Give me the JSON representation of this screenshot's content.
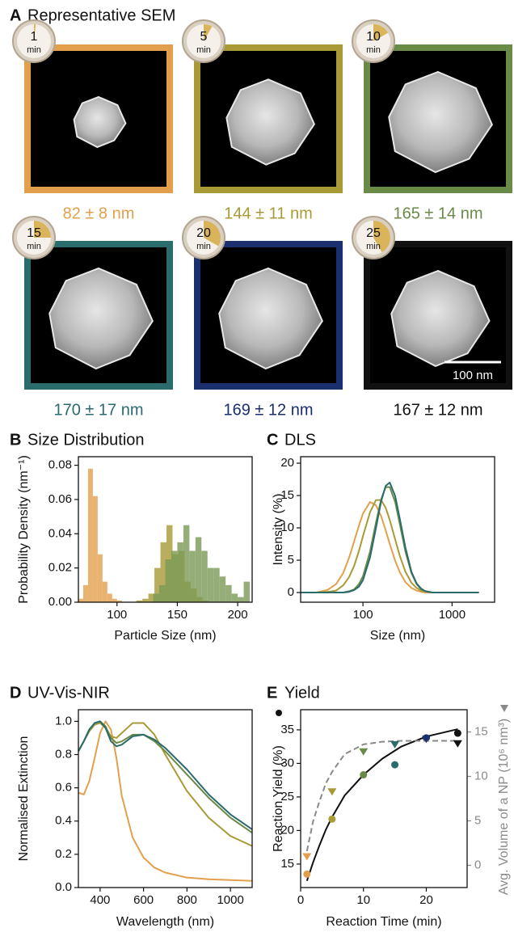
{
  "panel_a": {
    "label": "A",
    "title": "Representative SEM",
    "unit": "min",
    "scale_bar": "100 nm",
    "images": [
      {
        "time": 1,
        "size": "82 ± 8 nm",
        "color": "#e2a04c"
      },
      {
        "time": 5,
        "size": "144 ± 11 nm",
        "color": "#a89a36"
      },
      {
        "time": 10,
        "size": "165 ± 14 nm",
        "color": "#6a8a48"
      },
      {
        "time": 15,
        "size": "170 ± 17 nm",
        "color": "#2a6b6c"
      },
      {
        "time": 20,
        "size": "169 ± 12 nm",
        "color": "#1b2e6e"
      },
      {
        "time": 25,
        "size": "167 ± 12 nm",
        "color": "#111111"
      }
    ]
  },
  "chart_data": [
    {
      "type": "histogram",
      "label": "B",
      "title": "Size Distribution",
      "xlabel": "Particle Size (nm)",
      "ylabel": "Probability Density (nm⁻¹)",
      "xlim": [
        68,
        212
      ],
      "ylim": [
        0,
        0.085
      ],
      "xticks": [
        100,
        150,
        200
      ],
      "yticks": [
        {
          "value": 0,
          "label": "0.00"
        },
        0.02,
        0.04,
        0.06,
        0.08
      ],
      "series": [
        {
          "color": "#e2a04c",
          "bins": [
            68,
            72,
            76,
            80,
            84,
            88,
            92,
            96,
            100,
            104
          ],
          "values": [
            0.002,
            0.01,
            0.078,
            0.062,
            0.028,
            0.012,
            0.005,
            0.002,
            0.001
          ]
        },
        {
          "color": "#a89a36",
          "bins": [
            116,
            121,
            126,
            131,
            136,
            141,
            146,
            151,
            156,
            161,
            166,
            171,
            176
          ],
          "values": [
            0.001,
            0.002,
            0.005,
            0.02,
            0.035,
            0.045,
            0.028,
            0.03,
            0.012,
            0.008,
            0.003,
            0.001
          ]
        },
        {
          "color": "#7a9a55",
          "bins": [
            130,
            135,
            140,
            145,
            150,
            155,
            160,
            165,
            170,
            175,
            180,
            185,
            190,
            195,
            200,
            205,
            210
          ],
          "values": [
            0.005,
            0.01,
            0.025,
            0.03,
            0.035,
            0.045,
            0.03,
            0.038,
            0.03,
            0.02,
            0.02,
            0.015,
            0.01,
            0.005,
            0.003,
            0.012
          ]
        }
      ]
    },
    {
      "type": "line",
      "label": "C",
      "title": "DLS",
      "xlabel": "Size (nm)",
      "ylabel": "Intensity (%)",
      "xscale": "log",
      "xlim": [
        20,
        3000
      ],
      "ylim": [
        -1.5,
        21
      ],
      "xticks": [
        100,
        1000
      ],
      "yticks": [
        0,
        5,
        10,
        15,
        20
      ],
      "x": [
        20,
        30,
        40,
        50,
        60,
        70,
        80,
        90,
        100,
        120,
        140,
        160,
        180,
        200,
        230,
        260,
        300,
        350,
        400,
        450,
        500,
        600,
        2000
      ],
      "series": [
        {
          "color": "#e2a04c",
          "values": [
            0,
            0,
            0.4,
            1.3,
            3.0,
            5.4,
            8.0,
            10.3,
            12.2,
            14.0,
            13.5,
            11.8,
            9.6,
            7.5,
            4.9,
            3.1,
            1.6,
            0.7,
            0.3,
            0.1,
            0,
            0,
            0
          ]
        },
        {
          "color": "#a89a36",
          "values": [
            0,
            0,
            0.1,
            0.3,
            1.1,
            2.4,
            4.2,
            6.4,
            8.7,
            12.4,
            14.3,
            14.3,
            13.1,
            11.2,
            8.2,
            5.6,
            3.2,
            1.5,
            0.7,
            0.3,
            0.2,
            0,
            0
          ]
        },
        {
          "color": "#6a8a48",
          "values": [
            0,
            0,
            0,
            0,
            0,
            0.2,
            0.5,
            1.3,
            2.5,
            6.3,
            10.8,
            14.4,
            16.3,
            16.3,
            14.0,
            10.5,
            6.3,
            3.0,
            1.3,
            0.5,
            0.2,
            0,
            0
          ]
        },
        {
          "color": "#2a6b6c",
          "values": [
            0,
            0,
            0,
            0,
            0,
            0.1,
            0.4,
            0.9,
            1.9,
            5.4,
            10.0,
            14.1,
            16.5,
            17.0,
            14.9,
            11.3,
            6.9,
            3.2,
            1.4,
            0.6,
            0.2,
            0,
            0
          ]
        }
      ]
    },
    {
      "type": "line",
      "label": "D",
      "title": "UV-Vis-NIR",
      "xlabel": "Wavelength (nm)",
      "ylabel": "Normalised Extinction",
      "xlim": [
        300,
        1100
      ],
      "ylim": [
        0,
        1.07
      ],
      "xticks": [
        400,
        600,
        800,
        1000
      ],
      "yticks": [
        {
          "value": 0,
          "label": "0.0"
        },
        0.2,
        0.4,
        0.6,
        0.8,
        {
          "value": 1,
          "label": "1.0"
        }
      ],
      "x": [
        300,
        325,
        350,
        375,
        400,
        425,
        450,
        475,
        500,
        550,
        600,
        650,
        700,
        800,
        900,
        1000,
        1100
      ],
      "series": [
        {
          "color": "#e2a04c",
          "values": [
            0.57,
            0.56,
            0.64,
            0.78,
            0.93,
            1.0,
            0.95,
            0.78,
            0.55,
            0.3,
            0.18,
            0.12,
            0.09,
            0.06,
            0.05,
            0.045,
            0.04
          ]
        },
        {
          "color": "#a89a36",
          "values": [
            0.82,
            0.88,
            0.94,
            0.98,
            0.99,
            0.96,
            0.91,
            0.9,
            0.93,
            0.99,
            0.99,
            0.92,
            0.8,
            0.58,
            0.42,
            0.31,
            0.25
          ]
        },
        {
          "color": "#6a8a48",
          "values": [
            0.82,
            0.88,
            0.95,
            0.99,
            1.0,
            0.97,
            0.9,
            0.87,
            0.88,
            0.92,
            0.92,
            0.88,
            0.82,
            0.68,
            0.54,
            0.42,
            0.33
          ]
        },
        {
          "color": "#2a6b6c",
          "values": [
            0.82,
            0.88,
            0.95,
            0.99,
            1.0,
            0.96,
            0.88,
            0.85,
            0.86,
            0.91,
            0.92,
            0.89,
            0.84,
            0.71,
            0.56,
            0.44,
            0.35
          ]
        }
      ]
    },
    {
      "type": "scatter",
      "label": "E",
      "title": "Yield",
      "xlabel": "Reaction Time (min)",
      "ylabel": "Reaction Yield (%)",
      "y2label": "Avg. Volume of a NP (10⁶ nm³)",
      "xlim": [
        0,
        26.5
      ],
      "ylim": [
        11.5,
        38
      ],
      "y2lim": [
        -2.5,
        17.5
      ],
      "xticks": [
        0,
        10,
        20
      ],
      "yticks": [
        15,
        20,
        25,
        30,
        35
      ],
      "y2ticks": [
        0,
        5,
        10,
        15
      ],
      "y2color": "#8a8a8a",
      "x": [
        1,
        5,
        10,
        15,
        20,
        25
      ],
      "series": [
        {
          "marker": "circle",
          "colors": [
            "#e2a04c",
            "#a89a36",
            "#6a8a48",
            "#2a6b6c",
            "#1b2e6e",
            "#111111"
          ],
          "values": [
            13.5,
            21.7,
            28.3,
            29.8,
            33.8,
            34.5
          ],
          "fit": {
            "color": "#111111",
            "style": "solid",
            "x": [
              1,
              2,
              3,
              4,
              5,
              7,
              10,
              13,
              16,
              20,
              25
            ],
            "values": [
              12.5,
              15.3,
              17.8,
              20.1,
              22.0,
              25.2,
              28.3,
              30.7,
              32.5,
              34.0,
              35.1
            ]
          }
        },
        {
          "marker": "triangle",
          "axis": "y2",
          "colors": [
            "#e2a04c",
            "#a89a36",
            "#6a8a48",
            "#2a6b6c",
            "#1b2e6e",
            "#111111"
          ],
          "values": [
            1.0,
            8.3,
            12.8,
            13.6,
            14.2,
            13.7
          ],
          "fit": {
            "color": "#8a8a8a",
            "style": "dashed",
            "x": [
              1,
              2,
              3,
              4,
              5,
              7,
              10,
              13,
              16,
              20,
              25
            ],
            "values": [
              1.6,
              5.0,
              7.2,
              9.2,
              10.5,
              12.5,
              13.6,
              13.9,
              14.0,
              14.0,
              14.0
            ]
          }
        }
      ]
    }
  ]
}
